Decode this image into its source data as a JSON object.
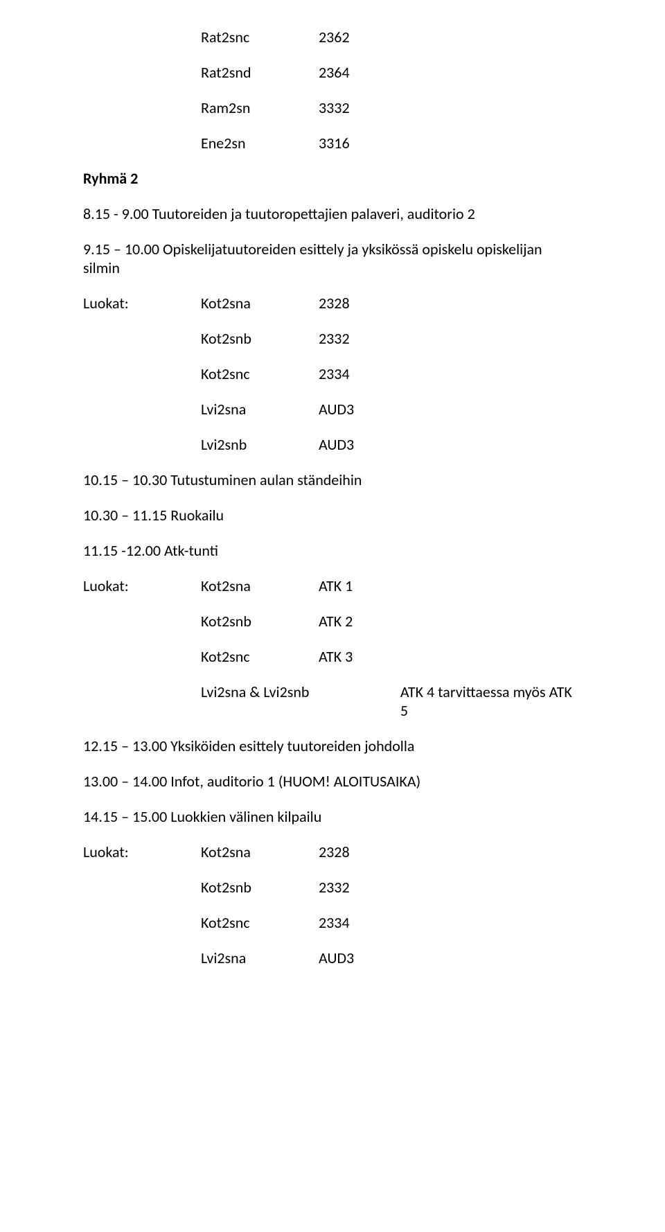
{
  "top_codes": [
    {
      "code": "Rat2snc",
      "value": "2362"
    },
    {
      "code": "Rat2snd",
      "value": "2364"
    },
    {
      "code": "Ram2sn",
      "value": "3332"
    },
    {
      "code": "Ene2sn",
      "value": "3316"
    }
  ],
  "group_heading": "Ryhmä 2",
  "lines": {
    "l1": "8.15 - 9.00 Tuutoreiden ja tuutoropettajien palaveri, auditorio 2",
    "l2": "9.15 – 10.00 Opiskelijatuutoreiden esittely ja yksikössä opiskelu opiskelijan silmin",
    "luokat_label": "Luokat:",
    "block1": [
      {
        "code": "Kot2sna",
        "value": "2328"
      },
      {
        "code": "Kot2snb",
        "value": "2332"
      },
      {
        "code": "Kot2snc",
        "value": "2334"
      },
      {
        "code": "Lvi2sna",
        "value": "AUD3"
      },
      {
        "code": "Lvi2snb",
        "value": "AUD3"
      }
    ],
    "l3": "10.15 – 10.30 Tutustuminen aulan ständeihin",
    "l4": "10.30 – 11.15 Ruokailu",
    "l5": "11.15 -12.00  Atk-tunti",
    "block2": [
      {
        "code": "Kot2sna",
        "value": "ATK 1"
      },
      {
        "code": "Kot2snb",
        "value": "ATK 2"
      },
      {
        "code": "Kot2snc",
        "value": "ATK 3"
      }
    ],
    "block2_wide": {
      "code": "Lvi2sna & Lvi2snb",
      "value": "ATK 4 tarvittaessa myös ATK 5"
    },
    "l6": "12.15 – 13.00 Yksiköiden esittely tuutoreiden johdolla",
    "l7": "13.00 – 14.00 Infot, auditorio 1 (HUOM! ALOITUSAIKA)",
    "l8": "14.15 – 15.00 Luokkien välinen kilpailu",
    "block3": [
      {
        "code": "Kot2sna",
        "value": "2328"
      },
      {
        "code": "Kot2snb",
        "value": "2332"
      },
      {
        "code": "Kot2snc",
        "value": "2334"
      },
      {
        "code": "Lvi2sna",
        "value": "AUD3"
      }
    ]
  },
  "style": {
    "text_color": "#000000",
    "background_color": "#ffffff",
    "font_family": "Calibri, Arial, sans-serif",
    "font_size_body": 22,
    "font_weight_bold": 700
  }
}
